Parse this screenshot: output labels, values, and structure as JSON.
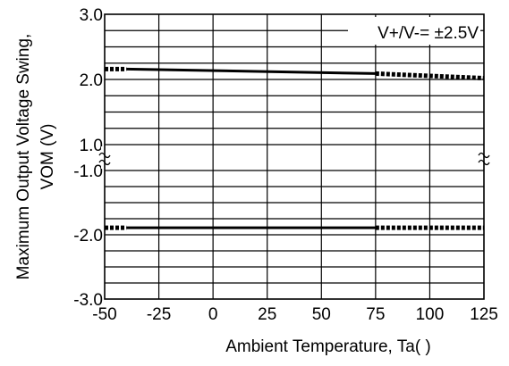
{
  "chart_data": {
    "type": "line",
    "title": "",
    "annotation": "V+/V-= ±2.5V",
    "xlabel": "Ambient Temperature, Ta(   )",
    "ylabel_line1": "Maximum Output Voltage Swing,",
    "ylabel_line2": "VOM (V)",
    "xlim": [
      -50,
      125
    ],
    "x_ticks": [
      -50,
      -25,
      0,
      25,
      50,
      75,
      100,
      125
    ],
    "x_tick_labels": [
      "-50",
      "-25",
      "0",
      "25",
      "50",
      "75",
      "100",
      "125"
    ],
    "upper_ylim": [
      1.0,
      3.0
    ],
    "lower_ylim": [
      -3.0,
      -1.0
    ],
    "upper_tick_labels": [
      "3.0",
      "2.0",
      "1.0"
    ],
    "lower_tick_labels": [
      "-1.0",
      "-2.0",
      "-3.0"
    ],
    "axis_break": true,
    "grid": true,
    "series": [
      {
        "segments": [
          {
            "style": "dotted",
            "points": [
              [
                -50,
                2.16
              ],
              [
                -40,
                2.16
              ]
            ]
          },
          {
            "style": "solid",
            "points": [
              [
                -40,
                2.16
              ],
              [
                75,
                2.09
              ]
            ]
          },
          {
            "style": "dotted",
            "points": [
              [
                75,
                2.09
              ],
              [
                125,
                2.02
              ]
            ]
          }
        ]
      },
      {
        "segments": [
          {
            "style": "dotted",
            "points": [
              [
                -50,
                -1.89
              ],
              [
                -40,
                -1.89
              ]
            ]
          },
          {
            "style": "solid",
            "points": [
              [
                -40,
                -1.89
              ],
              [
                75,
                -1.89
              ]
            ]
          },
          {
            "style": "dotted",
            "points": [
              [
                75,
                -1.89
              ],
              [
                125,
                -1.89
              ]
            ]
          }
        ]
      }
    ]
  }
}
